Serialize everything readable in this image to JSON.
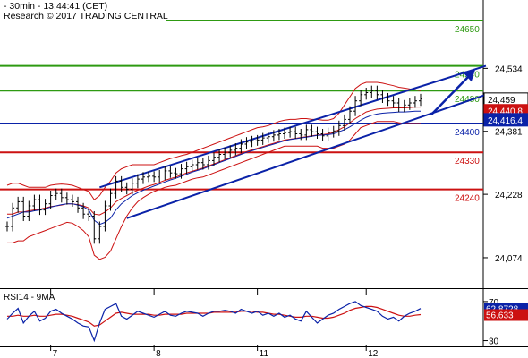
{
  "header": {
    "line1": "- 30min - 13:44:41 (CET)",
    "line2": "Research © 2017 TRADING CENTRAL"
  },
  "chart_data": {
    "type": "line",
    "price_axis": {
      "ylim": [
        24000,
        24700
      ],
      "ticks": [
        "24,534",
        "24,381",
        "24,228",
        "24,074"
      ],
      "tick_values": [
        24534,
        24381,
        24228,
        24074
      ]
    },
    "x_ticks": [
      {
        "label": "7",
        "index": 8
      },
      {
        "label": "8",
        "index": 27
      },
      {
        "label": "11",
        "index": 46
      },
      {
        "label": "12",
        "index": 66
      }
    ],
    "levels": [
      {
        "value": 24650,
        "label": "24650",
        "color": "#2e9a12"
      },
      {
        "value": 24540,
        "label": "24540",
        "color": "#2e9a12"
      },
      {
        "value": 24480,
        "label": "24480",
        "color": "#2e9a12"
      },
      {
        "value": 24400,
        "label": "24400",
        "color": "#0a22a8"
      },
      {
        "value": 24330,
        "label": "24330",
        "color": "#cc1111"
      },
      {
        "value": 24240,
        "label": "24240",
        "color": "#cc1111"
      }
    ],
    "price_tags": [
      {
        "label": "24,459",
        "value": 24459,
        "bg": "#ffffff",
        "fg": "#000000"
      },
      {
        "label": "24,440.8",
        "value": 24431,
        "bg": "#cc1111",
        "fg": "#ffffff"
      },
      {
        "label": "24,416.4",
        "value": 24409,
        "bg": "#0a22a8",
        "fg": "#ffffff"
      }
    ],
    "channel": {
      "upper": [
        [
          17,
          24245
        ],
        [
          88,
          24540
        ]
      ],
      "lower": [
        [
          22,
          24170
        ],
        [
          88,
          24470
        ]
      ],
      "color": "#0a22a8"
    },
    "projection_arrow": {
      "from": [
        78,
        24422
      ],
      "to": [
        86,
        24530
      ],
      "color": "#0a22a8"
    },
    "close": [
      24150,
      24195,
      24210,
      24175,
      24200,
      24215,
      24190,
      24205,
      24225,
      24230,
      24220,
      24215,
      24210,
      24195,
      24180,
      24175,
      24120,
      24150,
      24200,
      24230,
      24260,
      24245,
      24240,
      24255,
      24265,
      24270,
      24272,
      24270,
      24275,
      24285,
      24280,
      24278,
      24290,
      24295,
      24300,
      24305,
      24300,
      24310,
      24318,
      24325,
      24330,
      24335,
      24340,
      24350,
      24355,
      24358,
      24360,
      24365,
      24368,
      24372,
      24375,
      24378,
      24380,
      24375,
      24372,
      24385,
      24380,
      24375,
      24370,
      24378,
      24382,
      24395,
      24410,
      24430,
      24455,
      24470,
      24475,
      24480,
      24470,
      24462,
      24455,
      24450,
      24440,
      24445,
      24450,
      24455,
      24460
    ],
    "upper_band": [
      24250,
      24255,
      24255,
      24250,
      24245,
      24245,
      24245,
      24245,
      24250,
      24252,
      24253,
      24252,
      24250,
      24245,
      24240,
      24235,
      24215,
      24225,
      24245,
      24260,
      24280,
      24290,
      24295,
      24300,
      24300,
      24300,
      24300,
      24300,
      24305,
      24310,
      24315,
      24318,
      24322,
      24325,
      24330,
      24335,
      24340,
      24345,
      24350,
      24355,
      24360,
      24365,
      24370,
      24375,
      24380,
      24385,
      24390,
      24392,
      24395,
      24400,
      24405,
      24408,
      24410,
      24410,
      24412,
      24412,
      24410,
      24410,
      24408,
      24408,
      24412,
      24425,
      24445,
      24465,
      24485,
      24495,
      24500,
      24500,
      24500,
      24498,
      24495,
      24492,
      24488,
      24486,
      24484,
      24482,
      24480
    ],
    "lower_band": [
      24110,
      24110,
      24115,
      24115,
      24125,
      24130,
      24135,
      24140,
      24145,
      24150,
      24155,
      24160,
      24158,
      24150,
      24140,
      24125,
      24080,
      24070,
      24075,
      24090,
      24120,
      24150,
      24175,
      24195,
      24210,
      24220,
      24228,
      24235,
      24240,
      24245,
      24248,
      24250,
      24255,
      24260,
      24265,
      24268,
      24270,
      24275,
      24280,
      24285,
      24290,
      24295,
      24300,
      24305,
      24310,
      24315,
      24320,
      24325,
      24330,
      24335,
      24340,
      24345,
      24345,
      24345,
      24345,
      24345,
      24345,
      24345,
      24340,
      24340,
      24340,
      24345,
      24350,
      24360,
      24375,
      24390,
      24395,
      24400,
      24405,
      24405,
      24405,
      24405,
      24402,
      24400,
      24400,
      24400,
      24400
    ],
    "ma_blue": [
      24170,
      24175,
      24180,
      24185,
      24185,
      24188,
      24190,
      24193,
      24197,
      24200,
      24203,
      24205,
      24205,
      24202,
      24198,
      24190,
      24165,
      24155,
      24160,
      24170,
      24190,
      24205,
      24215,
      24225,
      24232,
      24238,
      24243,
      24248,
      24253,
      24258,
      24263,
      24267,
      24272,
      24277,
      24282,
      24286,
      24290,
      24295,
      24300,
      24305,
      24310,
      24315,
      24320,
      24325,
      24330,
      24334,
      24338,
      24342,
      24346,
      24350,
      24354,
      24358,
      24361,
      24363,
      24365,
      24367,
      24369,
      24371,
      24372,
      24373,
      24375,
      24380,
      24385,
      24392,
      24400,
      24408,
      24415,
      24420,
      24423,
      24425,
      24426,
      24427,
      24428,
      24428,
      24429,
      24430,
      24430
    ],
    "ma_red": [
      24180,
      24180,
      24185,
      24185,
      24188,
      24190,
      24192,
      24195,
      24198,
      24200,
      24202,
      24205,
      24205,
      24203,
      24200,
      24195,
      24180,
      24178,
      24185,
      24195,
      24210,
      24218,
      24225,
      24232,
      24238,
      24243,
      24248,
      24252,
      24257,
      24262,
      24266,
      24270,
      24275,
      24280,
      24284,
      24288,
      24292,
      24297,
      24302,
      24307,
      24312,
      24317,
      24322,
      24327,
      24332,
      24336,
      24340,
      24344,
      24348,
      24352,
      24356,
      24360,
      24362,
      24364,
      24366,
      24368,
      24370,
      24372,
      24373,
      24375,
      24378,
      24385,
      24392,
      24402,
      24412,
      24420,
      24428,
      24432,
      24435,
      24436,
      24437,
      24438,
      24438,
      24438,
      24439,
      24440,
      24440
    ],
    "rsi": {
      "label": "RSI14 - 9MA",
      "ticks": [
        "70",
        "30"
      ],
      "tick_values": [
        70,
        30
      ],
      "ylim": [
        25,
        80
      ],
      "current": [
        {
          "label": "62.8728",
          "value": 62.8728,
          "bg": "#0a22a8",
          "fg": "#ffffff"
        },
        {
          "label": "56.633",
          "value": 56.633,
          "bg": "#cc1111",
          "fg": "#ffffff"
        }
      ],
      "rsi_values": [
        52,
        58,
        63,
        48,
        55,
        60,
        50,
        53,
        60,
        62,
        58,
        55,
        52,
        48,
        45,
        44,
        30,
        48,
        62,
        65,
        68,
        55,
        52,
        56,
        60,
        58,
        56,
        54,
        57,
        60,
        56,
        55,
        58,
        60,
        59,
        58,
        55,
        58,
        60,
        60,
        61,
        60,
        58,
        62,
        60,
        58,
        60,
        56,
        58,
        55,
        58,
        54,
        56,
        52,
        50,
        60,
        54,
        48,
        52,
        56,
        58,
        62,
        65,
        68,
        70,
        66,
        64,
        62,
        60,
        55,
        52,
        54,
        50,
        55,
        58,
        60,
        62.87
      ],
      "ma_values": [
        55,
        55,
        56,
        55,
        55,
        56,
        55,
        55,
        56,
        57,
        57,
        56,
        55,
        53,
        51,
        49,
        45,
        46,
        50,
        54,
        58,
        59,
        58,
        57,
        57,
        57,
        57,
        56,
        56,
        57,
        57,
        57,
        57,
        58,
        58,
        58,
        58,
        58,
        59,
        59,
        59,
        59,
        59,
        60,
        60,
        60,
        59,
        59,
        58,
        57,
        57,
        56,
        55,
        54,
        54,
        55,
        55,
        54,
        53,
        53,
        54,
        56,
        58,
        61,
        63,
        64,
        65,
        65,
        64,
        62,
        60,
        58,
        56,
        55,
        55,
        56,
        56.63
      ]
    }
  }
}
